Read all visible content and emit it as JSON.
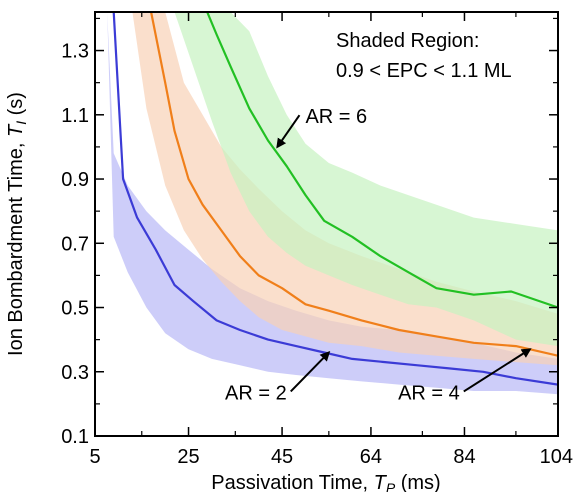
{
  "chart_data": {
    "type": "line",
    "xlabel": {
      "main": "Passivation Time, ",
      "symbol": "T",
      "sub": "P",
      "unit": " (ms)"
    },
    "ylabel": {
      "main": "Ion Bombardment Time, ",
      "symbol": "T",
      "sub": "I",
      "unit": " (s)"
    },
    "xlim": [
      5,
      104
    ],
    "ylim": [
      0.1,
      1.42
    ],
    "xticks": [
      5,
      25,
      45,
      64,
      84,
      104
    ],
    "yticks": [
      0.1,
      0.3,
      0.5,
      0.7,
      0.9,
      1.1,
      1.3
    ],
    "xtick_labels": [
      "5",
      "25",
      "45",
      "64",
      "84",
      "104"
    ],
    "ytick_labels": [
      "0.1",
      "0.3",
      "0.5",
      "0.7",
      "0.9",
      "1.1",
      "1.3"
    ],
    "grid": false,
    "annotation_box": [
      "Shaded Region:",
      "0.9 < EPC < 1.1 ML"
    ],
    "series": [
      {
        "name": "AR = 2",
        "color": "#3b3bd6",
        "band_color": "#b8b8f6",
        "x": [
          9,
          11,
          14,
          18,
          22,
          26,
          31,
          36,
          42,
          48,
          54,
          60,
          67,
          74,
          81,
          88,
          95,
          104
        ],
        "y": [
          1.42,
          0.9,
          0.78,
          0.68,
          0.57,
          0.52,
          0.46,
          0.43,
          0.4,
          0.38,
          0.36,
          0.34,
          0.33,
          0.32,
          0.31,
          0.3,
          0.28,
          0.26
        ],
        "band_x": [
          7.6,
          9,
          12,
          16,
          20,
          25,
          30,
          36,
          42,
          48,
          55,
          62,
          70,
          78,
          86,
          95,
          104
        ],
        "band_upper": [
          1.42,
          0.98,
          0.88,
          0.8,
          0.74,
          0.68,
          0.62,
          0.56,
          0.52,
          0.49,
          0.46,
          0.44,
          0.43,
          0.41,
          0.39,
          0.36,
          0.34
        ],
        "band_lower": [
          1.42,
          0.72,
          0.61,
          0.5,
          0.42,
          0.37,
          0.34,
          0.32,
          0.3,
          0.29,
          0.28,
          0.27,
          0.26,
          0.25,
          0.24,
          0.24,
          0.23
        ]
      },
      {
        "name": "AR = 4",
        "color": "#f07f1a",
        "band_color": "#f8d2b6",
        "x": [
          17,
          20,
          22,
          25,
          28,
          32,
          36,
          40,
          45,
          50,
          55,
          62,
          70,
          78,
          86,
          95,
          104
        ],
        "y": [
          1.42,
          1.2,
          1.05,
          0.9,
          0.82,
          0.74,
          0.66,
          0.6,
          0.56,
          0.51,
          0.49,
          0.46,
          0.43,
          0.41,
          0.39,
          0.38,
          0.35
        ],
        "band_x": [
          13,
          16,
          20,
          24,
          28,
          32,
          36,
          40,
          45,
          50,
          55,
          62,
          70,
          78,
          86,
          95,
          104
        ],
        "band_upper": [
          1.42,
          1.42,
          1.42,
          1.2,
          1.1,
          1.0,
          0.93,
          0.87,
          0.8,
          0.74,
          0.7,
          0.66,
          0.62,
          0.58,
          0.55,
          0.52,
          0.48
        ],
        "band_lower": [
          1.42,
          1.12,
          0.88,
          0.74,
          0.65,
          0.58,
          0.52,
          0.47,
          0.43,
          0.41,
          0.39,
          0.38,
          0.36,
          0.35,
          0.34,
          0.33,
          0.32
        ]
      },
      {
        "name": "AR = 6",
        "color": "#22c023",
        "band_color": "#c6f2c0",
        "x": [
          29,
          31,
          34,
          38,
          42,
          46,
          50,
          54,
          60,
          66,
          72,
          78,
          86,
          94,
          104
        ],
        "y": [
          1.42,
          1.35,
          1.25,
          1.12,
          1.02,
          0.94,
          0.85,
          0.77,
          0.72,
          0.66,
          0.61,
          0.56,
          0.54,
          0.55,
          0.5
        ],
        "band_x": [
          22,
          30,
          34,
          38,
          42,
          46,
          50,
          55,
          60,
          66,
          72,
          78,
          86,
          95,
          104
        ],
        "band_upper": [
          1.42,
          1.42,
          1.42,
          1.36,
          1.22,
          1.1,
          1.01,
          0.95,
          0.92,
          0.88,
          0.85,
          0.82,
          0.78,
          0.76,
          0.74
        ],
        "band_lower": [
          1.42,
          1.08,
          0.92,
          0.8,
          0.72,
          0.67,
          0.63,
          0.6,
          0.57,
          0.54,
          0.51,
          0.5,
          0.46,
          0.4,
          0.38
        ]
      }
    ],
    "annotations": [
      {
        "text": "AR = 6",
        "target": [
          44,
          1.0
        ],
        "label_at": [
          50,
          1.08
        ],
        "anchor": "start"
      },
      {
        "text": "AR = 2",
        "target": [
          55,
          0.36
        ],
        "label_at": [
          46,
          0.22
        ],
        "anchor": "end"
      },
      {
        "text": "AR = 4",
        "target": [
          98,
          0.37
        ],
        "label_at": [
          83,
          0.22
        ],
        "anchor": "end"
      }
    ]
  }
}
